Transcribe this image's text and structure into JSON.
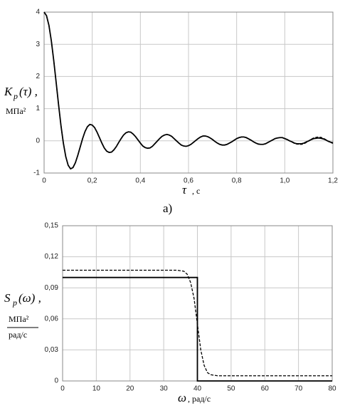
{
  "chart_data": [
    {
      "type": "line",
      "caption": "а)",
      "y_label": {
        "main": "K",
        "sub": "p",
        "rest": "(τ) ,",
        "unit": "МПа²"
      },
      "x_label": {
        "symbol": "τ",
        "unit": ", с"
      },
      "xlim": [
        0,
        1.2
      ],
      "ylim": [
        -1,
        4
      ],
      "xticks": [
        0,
        {
          "value": 0.2,
          "label": "0,2"
        },
        {
          "value": 0.4,
          "label": "0,4"
        },
        {
          "value": 0.6,
          "label": "0,6"
        },
        {
          "value": 0.8,
          "label": "0,8"
        },
        {
          "value": 1.0,
          "label": "1,0"
        },
        {
          "value": 1.2,
          "label": "1,2"
        }
      ],
      "yticks": [
        -1,
        0,
        1,
        2,
        3,
        4
      ],
      "grid": true,
      "x": [
        0,
        0.01,
        0.02,
        0.03,
        0.04,
        0.05,
        0.06,
        0.07,
        0.08,
        0.09,
        0.1,
        0.11,
        0.12,
        0.13,
        0.14,
        0.15,
        0.16,
        0.17,
        0.18,
        0.19,
        0.2,
        0.21,
        0.22,
        0.23,
        0.24,
        0.25,
        0.26,
        0.27,
        0.28,
        0.29,
        0.3,
        0.31,
        0.32,
        0.33,
        0.34,
        0.35,
        0.36,
        0.37,
        0.38,
        0.39,
        0.4,
        0.41,
        0.42,
        0.43,
        0.44,
        0.45,
        0.46,
        0.47,
        0.48,
        0.49,
        0.5,
        0.51,
        0.52,
        0.53,
        0.54,
        0.55,
        0.56,
        0.57,
        0.58,
        0.59,
        0.6,
        0.61,
        0.62,
        0.63,
        0.64,
        0.65,
        0.66,
        0.67,
        0.68,
        0.69,
        0.7,
        0.71,
        0.72,
        0.73,
        0.74,
        0.75,
        0.76,
        0.77,
        0.78,
        0.79,
        0.8,
        0.81,
        0.82,
        0.83,
        0.84,
        0.85,
        0.86,
        0.87,
        0.88,
        0.89,
        0.9,
        0.91,
        0.92,
        0.93,
        0.94,
        0.95,
        0.96,
        0.97,
        0.98,
        0.99,
        1.0,
        1.01,
        1.02,
        1.03,
        1.04,
        1.05,
        1.06,
        1.07,
        1.08,
        1.09,
        1.1,
        1.11,
        1.12,
        1.13,
        1.14,
        1.15,
        1.16,
        1.17,
        1.18,
        1.19,
        1.2
      ],
      "series": [
        {
          "color": "#000000",
          "dash": false,
          "values": [
            4,
            3.89,
            3.59,
            3.11,
            2.5,
            1.82,
            1.13,
            0.48,
            -0.07,
            -0.49,
            -0.76,
            -0.87,
            -0.83,
            -0.68,
            -0.45,
            -0.19,
            0.07,
            0.29,
            0.44,
            0.51,
            0.49,
            0.41,
            0.27,
            0.1,
            -0.07,
            -0.22,
            -0.32,
            -0.36,
            -0.35,
            -0.28,
            -0.18,
            -0.05,
            0.07,
            0.18,
            0.25,
            0.28,
            0.27,
            0.21,
            0.13,
            0.03,
            -0.07,
            -0.16,
            -0.21,
            -0.23,
            -0.22,
            -0.17,
            -0.09,
            -0.01,
            0.07,
            0.14,
            0.18,
            0.2,
            0.18,
            0.14,
            0.07,
            0,
            -0.07,
            -0.13,
            -0.16,
            -0.17,
            -0.15,
            -0.11,
            -0.05,
            0.01,
            0.07,
            0.12,
            0.15,
            0.15,
            0.13,
            0.09,
            0.04,
            -0.02,
            -0.07,
            -0.11,
            -0.13,
            -0.13,
            -0.11,
            -0.07,
            -0.03,
            0.02,
            0.07,
            0.1,
            0.12,
            0.12,
            0.1,
            0.06,
            0.02,
            -0.03,
            -0.07,
            -0.1,
            -0.11,
            -0.11,
            -0.09,
            -0.05,
            -0.01,
            0.03,
            0.07,
            0.09,
            0.1,
            0.1,
            0.07,
            0.04,
            0,
            -0.03,
            -0.07,
            -0.09,
            -0.09,
            -0.09,
            -0.07,
            -0.03,
            0,
            0.04,
            0.07,
            0.08,
            0.09,
            0.08,
            0.06,
            0.03,
            -0.01,
            -0.04,
            -0.06
          ]
        },
        {
          "color": "#000000",
          "dash": true,
          "values": [
            4,
            3.89,
            3.59,
            3.11,
            2.5,
            1.82,
            1.13,
            0.48,
            -0.07,
            -0.49,
            -0.76,
            -0.87,
            -0.83,
            -0.68,
            -0.45,
            -0.19,
            0.07,
            0.29,
            0.44,
            0.51,
            0.49,
            0.41,
            0.27,
            0.1,
            -0.07,
            -0.22,
            -0.32,
            -0.36,
            -0.35,
            -0.28,
            -0.18,
            -0.05,
            0.07,
            0.18,
            0.25,
            0.28,
            0.27,
            0.21,
            0.13,
            0.03,
            -0.07,
            -0.16,
            -0.21,
            -0.23,
            -0.22,
            -0.17,
            -0.09,
            -0.01,
            0.07,
            0.14,
            0.18,
            0.2,
            0.18,
            0.14,
            0.07,
            0,
            -0.07,
            -0.13,
            -0.16,
            -0.17,
            -0.15,
            -0.11,
            -0.05,
            0.01,
            0.07,
            0.12,
            0.15,
            0.15,
            0.13,
            0.09,
            0.04,
            -0.02,
            -0.07,
            -0.11,
            -0.13,
            -0.13,
            -0.11,
            -0.07,
            -0.03,
            0.02,
            0.07,
            0.1,
            0.12,
            0.12,
            0.1,
            0.06,
            0.02,
            -0.03,
            -0.07,
            -0.1,
            -0.11,
            -0.11,
            -0.09,
            -0.05,
            -0.01,
            0.03,
            0.07,
            0.09,
            0.1,
            0.1,
            0.07,
            0.04,
            0,
            -0.04,
            -0.08,
            -0.1,
            -0.11,
            -0.11,
            -0.09,
            -0.05,
            0,
            0.05,
            0.09,
            0.11,
            0.12,
            0.11,
            0.08,
            0.04,
            -0.01,
            -0.05,
            -0.08
          ]
        }
      ]
    },
    {
      "type": "line",
      "y_label": {
        "main": "S",
        "sub": "p",
        "rest": "(ω) ,",
        "unit_num": "МПа²",
        "unit_den": "рад/с"
      },
      "x_label": {
        "symbol": "ω",
        "unit": ", рад/с"
      },
      "xlim": [
        0,
        80
      ],
      "ylim": [
        0,
        0.15
      ],
      "xticks": [
        0,
        10,
        20,
        30,
        40,
        50,
        60,
        70,
        80
      ],
      "yticks": [
        0,
        {
          "value": 0.03,
          "label": "0,03"
        },
        {
          "value": 0.06,
          "label": "0,06"
        },
        {
          "value": 0.09,
          "label": "0,09"
        },
        {
          "value": 0.12,
          "label": "0,12"
        },
        {
          "value": 0.15,
          "label": "0,15"
        }
      ],
      "grid": true,
      "series": [
        {
          "color": "#000000",
          "dash": false,
          "x": [
            0,
            40,
            40,
            80
          ],
          "values": [
            0.1,
            0.1,
            0,
            0
          ]
        },
        {
          "color": "#000000",
          "dash": true,
          "x": [
            0,
            34,
            36,
            37,
            38,
            39,
            40,
            41,
            42,
            43,
            44,
            46,
            80
          ],
          "values": [
            0.107,
            0.107,
            0.106,
            0.103,
            0.095,
            0.08,
            0.055,
            0.03,
            0.015,
            0.008,
            0.006,
            0.005,
            0.005
          ]
        }
      ]
    }
  ]
}
